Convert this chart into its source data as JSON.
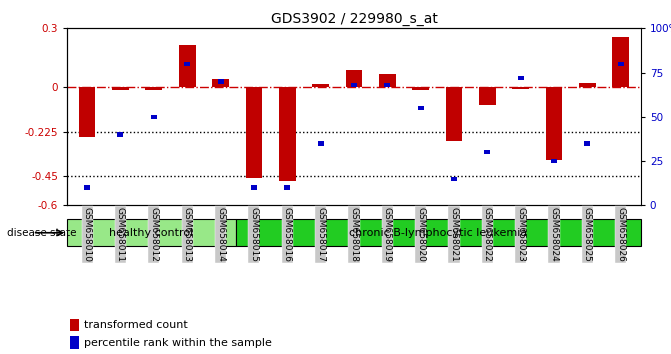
{
  "title": "GDS3902 / 229980_s_at",
  "samples": [
    "GSM658010",
    "GSM658011",
    "GSM658012",
    "GSM658013",
    "GSM658014",
    "GSM658015",
    "GSM658016",
    "GSM658017",
    "GSM658018",
    "GSM658019",
    "GSM658020",
    "GSM658021",
    "GSM658022",
    "GSM658023",
    "GSM658024",
    "GSM658025",
    "GSM658026"
  ],
  "red_values": [
    -0.255,
    -0.015,
    -0.015,
    0.215,
    0.04,
    -0.46,
    -0.475,
    0.015,
    0.09,
    0.07,
    -0.015,
    -0.275,
    -0.09,
    -0.01,
    -0.37,
    0.02,
    0.258
  ],
  "blue_values": [
    10,
    40,
    50,
    80,
    70,
    10,
    10,
    35,
    68,
    68,
    55,
    15,
    30,
    72,
    25,
    35,
    80
  ],
  "ylim_left": [
    -0.6,
    0.3
  ],
  "ylim_right": [
    0,
    100
  ],
  "yticks_left": [
    -0.6,
    -0.45,
    -0.225,
    0.0,
    0.3
  ],
  "yticks_left_labels": [
    "-0.6",
    "-0.45",
    "-0.225",
    "0",
    "0.3"
  ],
  "yticks_right": [
    0,
    25,
    50,
    75,
    100
  ],
  "yticks_right_labels": [
    "0",
    "25",
    "50",
    "75",
    "100%"
  ],
  "hlines_dotted": [
    -0.225,
    -0.45
  ],
  "bar_color": "#C00000",
  "blue_color": "#0000C8",
  "dashdot_color": "#CC0000",
  "healthy_control_count": 5,
  "healthy_label": "healthy control",
  "disease_label": "chronic B-lymphocytic leukemia",
  "group_bg_healthy": "#98E888",
  "group_bg_disease": "#22CC22",
  "xticklabel_bg": "#C8C8C8",
  "legend_red": "transformed count",
  "legend_blue": "percentile rank within the sample",
  "bar_width": 0.5
}
